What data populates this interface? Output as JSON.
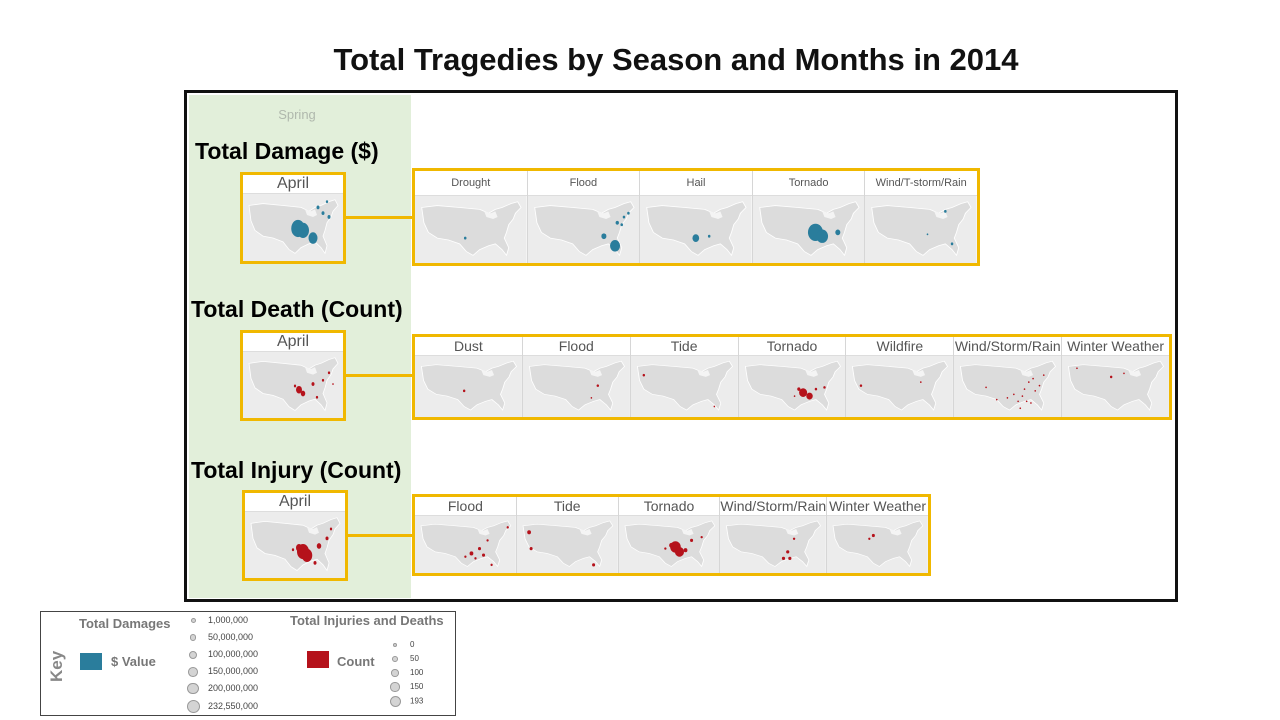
{
  "title": "Total Tragedies by Season and Months in 2014",
  "season": "Spring",
  "sections": [
    {
      "title": "Total Damage ($)",
      "month": "April",
      "color": "#2a7d9c",
      "panels": [
        "Drought",
        "Flood",
        "Hail",
        "Tornado",
        "Wind/T-storm/Rain"
      ]
    },
    {
      "title": "Total Death (Count)",
      "month": "April",
      "color": "#b5121b",
      "panels": [
        "Dust",
        "Flood",
        "Tide",
        "Tornado",
        "Wildfire",
        "Wind/Storm/Rain",
        "Winter Weather"
      ]
    },
    {
      "title": "Total Injury (Count)",
      "month": "April",
      "color": "#b5121b",
      "panels": [
        "Flood",
        "Tide",
        "Tornado",
        "Wind/Storm/Rain",
        "Winter Weather"
      ]
    }
  ],
  "key": {
    "label": "Key",
    "damages_title": "Total Damages",
    "damages_swatch_label": "$ Value",
    "damages_color": "#2a7d9c",
    "damages_sizes": [
      "1,000,000",
      "50,000,000",
      "100,000,000",
      "150,000,000",
      "200,000,000",
      "232,550,000"
    ],
    "injuries_title": "Total Injuries and Deaths",
    "injuries_swatch_label": "Count",
    "injuries_color": "#b5121b",
    "injuries_sizes": [
      "0",
      "50",
      "100",
      "150",
      "193"
    ]
  }
}
